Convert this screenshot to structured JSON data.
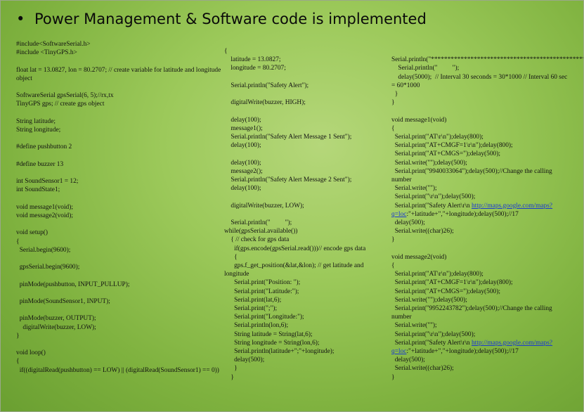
{
  "title": "Power Management & Software code is implemented",
  "columns": [
    [
      "#include<SoftwareSerial.h>",
      "#include <TinyGPS.h>",
      "",
      "float lat = 13.0827, lon = 80.2707; // create variable for latitude and longitude object",
      "",
      "SoftwareSerial gpsSerial(6, 5);//rx,tx",
      "TinyGPS gps; // create gps object",
      "",
      "String latitude;",
      "String longitude;",
      "",
      "#define pushbutton 2",
      "",
      "#define buzzer 13",
      "",
      "int SoundSensor1 = 12;",
      "int SoundState1;",
      "",
      "void message1(void);",
      "void message2(void);",
      "",
      "void setup()",
      "{",
      "  Serial.begin(9600);",
      "",
      "  gpsSerial.begin(9600);",
      "",
      "  pinMode(pushbutton, INPUT_PULLUP);",
      "",
      "  pinMode(SoundSensor1, INPUT);",
      "",
      "  pinMode(buzzer, OUTPUT);",
      "    digitalWrite(buzzer, LOW);",
      "}",
      "",
      "void loop()",
      "{",
      "  if((digitalRead(pushbutton) == LOW) || (digitalRead(SoundSensor1) == 0))"
    ],
    [
      "{",
      "    latitude = 13.0827;",
      "    longitude = 80.2707;",
      "",
      "    Serial.println(\"Safety Alert\");",
      "",
      "    digitalWrite(buzzer, HIGH);",
      "",
      "    delay(100);",
      "    message1();",
      "    Serial.println(\"Safety Alert Message 1 Sent\");",
      "    delay(100);",
      "",
      "    delay(100);",
      "    message2();",
      "    Serial.println(\"Safety Alert Message 2 Sent\");",
      "    delay(100);",
      "",
      "    digitalWrite(buzzer, LOW);",
      "",
      "    Serial.println(\"         \");",
      "while(gpsSerial.available())",
      "    { // check for gps data",
      "      if(gps.encode(gpsSerial.read()))// encode gps data",
      "      {",
      "      gps.f_get_position(&lat,&lon); // get latitude and longitude",
      "      Serial.print(\"Position: \");",
      "      Serial.print(\"Latitude:\");",
      "      Serial.print(lat,6);",
      "      Serial.print(\";\");",
      "      Serial.print(\"Longitude:\");",
      "      Serial.println(lon,6);",
      "      String latitude = String(lat,6);",
      "      String longitude = String(lon,6);",
      "      Serial.println(latitude+\";\"+longitude);",
      "      delay(500);",
      "      }",
      "    }"
    ],
    [
      "    Serial.println(\"*************************************************************\");",
      "    Serial.println(\"         \");",
      "    delay(5000);  // Interval 30 seconds = 30*1000 // Interval 60 sec = 60*1000",
      "  }",
      "}",
      "",
      "void message1(void)",
      "{",
      "  Serial.print(\"AT\\r\\n\");delay(800);",
      "  Serial.print(\"AT+CMGF=1\\r\\n\");delay(800);",
      "  Serial.print(\"AT+CMGS=\");delay(500);",
      "  Serial.write(\"\");delay(500);",
      "  Serial.print(\"9940033064\");delay(500);//Change the calling number",
      "  Serial.write(\"\");",
      "  Serial.print(\"\\r\\n\");delay(500);",
      "  Serial.print(\"Safety Alert\\r\\n ",
      "  delay(500);",
      "  Serial.write((char)26);",
      "}",
      "",
      "void message2(void)",
      "{",
      "  Serial.print(\"AT\\r\\n\");delay(800);",
      "  Serial.print(\"AT+CMGF=1\\r\\n\");delay(800);",
      "  Serial.print(\"AT+CMGS=\");delay(500);",
      "  Serial.write(\"\");delay(500);",
      "  Serial.print(\"9952243782\");delay(500);//Change the calling number",
      "  Serial.write(\"\");",
      "  Serial.print(\"\\r\\n\");delay(500);",
      "  Serial.print(\"Safety Alert\\r\\n ",
      "  delay(500);",
      "  Serial.write((char)26);",
      "}"
    ]
  ],
  "link_lines": {
    "message1": {
      "before": "  Serial.print(\"Safety Alert\\r\\n ",
      "link": "http://maps.google.com/maps?q=loc",
      "after": ":\"+latitude+\",\"+longitude);delay(500);//17"
    },
    "message2": {
      "before": "  Serial.print(\"Safety Alert\\r\\n ",
      "link": "http://maps.google.com/maps?q=loc",
      "after": ":\"+latitude+\",\"+longitude);delay(500);//17"
    }
  }
}
